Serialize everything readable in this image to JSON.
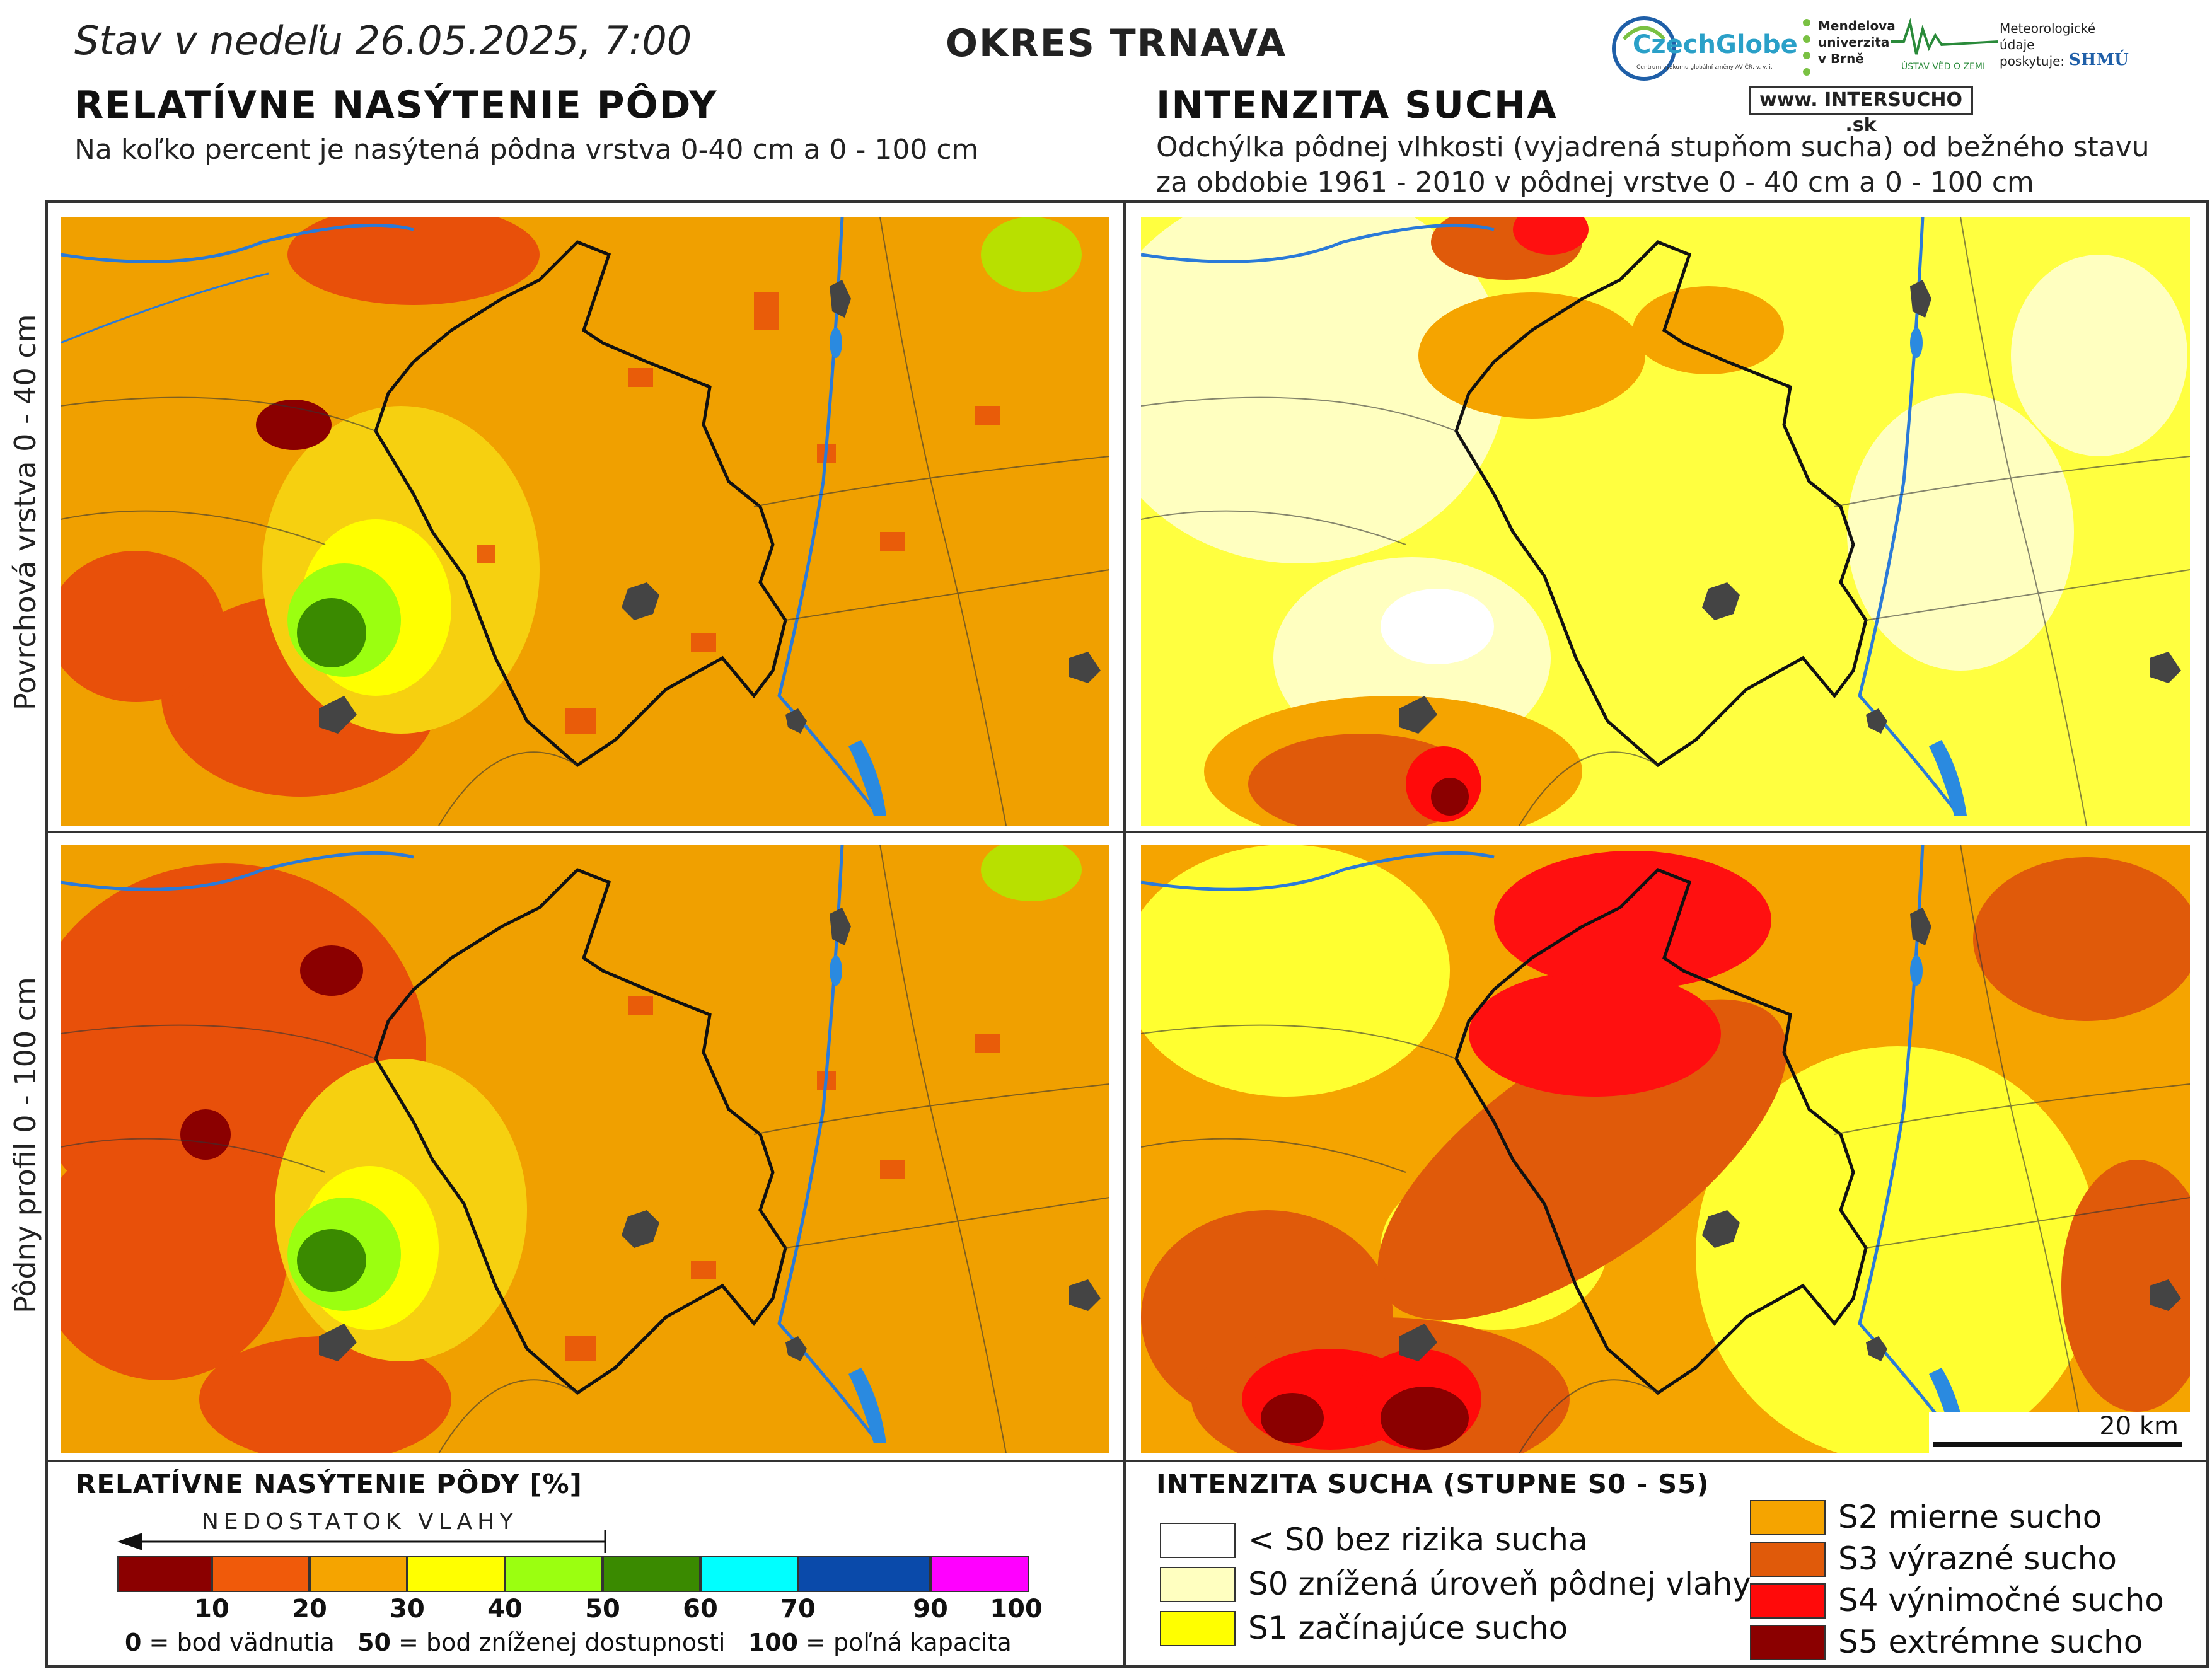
{
  "header": {
    "date_line": "Stav v nedeľu 26.05.2025, 7:00",
    "district": "OKRES  TRNAVA"
  },
  "logos": {
    "czechglobe": "CzechGlobe",
    "czechglobe_sub": "Centrum výzkumu globální změny AV ČR, v. v. i.",
    "mendel": "Mendelova univerzita v Brně",
    "ustav": "ÚSTAV VĚD O ZEMI",
    "meteo_note": "Meteorologické údaje poskytuje:",
    "shmu": "SHMÚ",
    "intersucho": "www. INTERSUCHO .sk"
  },
  "left_section": {
    "title": "RELATÍVNE NASÝTENIE PÔDY",
    "subtitle": "Na koľko percent je nasýtená pôdna vrstva 0-40 cm a 0 - 100 cm"
  },
  "right_section": {
    "title": "INTENZITA SUCHA",
    "subtitle_1": "Odchýlka pôdnej vlhkosti (vyjadrená stupňom sucha) od bežného stavu",
    "subtitle_2": "za obdobie 1961 - 2010 v pôdnej vrstve 0 - 40 cm a 0 - 100 cm"
  },
  "row_labels": {
    "top": "Povrchová vrstva 0 - 40 cm",
    "bottom": "Pôdny profil 0 - 100 cm"
  },
  "scale_bar": "20 km",
  "saturation_legend": {
    "title": "RELATÍVNE NASÝTENIE PÔDY [%]",
    "deficit_label": "NEDOSTATOK VLAHY",
    "bins": [
      {
        "color": "#8b0000",
        "upper": "10"
      },
      {
        "color": "#f05a0a",
        "upper": "20"
      },
      {
        "color": "#f5a400",
        "upper": "30"
      },
      {
        "color": "#ffff00",
        "upper": "40"
      },
      {
        "color": "#9bff10",
        "upper": "50"
      },
      {
        "color": "#3a8a00",
        "upper": "60"
      },
      {
        "color": "#00ffff",
        "upper": "70"
      },
      {
        "color": "#0a4aaa",
        "upper": "90"
      },
      {
        "color": "#ff00ff",
        "upper": "100"
      }
    ],
    "note_0_val": "0",
    "note_0": " = bod vädnutia",
    "note_50_val": "50",
    "note_50": " = bod zníženej dostupnosti",
    "note_100_val": "100",
    "note_100": " = poľná kapacita"
  },
  "drought_legend": {
    "title": "INTENZITA SUCHA (STUPNE S0 - S5)",
    "items": [
      {
        "color": "#ffffff",
        "label": "< S0 bez rizika sucha"
      },
      {
        "color": "#ffffc0",
        "label": "S0 znížená úroveň pôdnej vlahy"
      },
      {
        "color": "#ffff00",
        "label": "S1 začínajúce sucho"
      },
      {
        "color": "#f5a400",
        "label": "S2 mierne sucho"
      },
      {
        "color": "#e05a0a",
        "label": "S3 výrazné sucho"
      },
      {
        "color": "#ff0a0a",
        "label": "S4 výnimočné sucho"
      },
      {
        "color": "#8b0000",
        "label": "S5 extrémne sucho"
      }
    ]
  }
}
